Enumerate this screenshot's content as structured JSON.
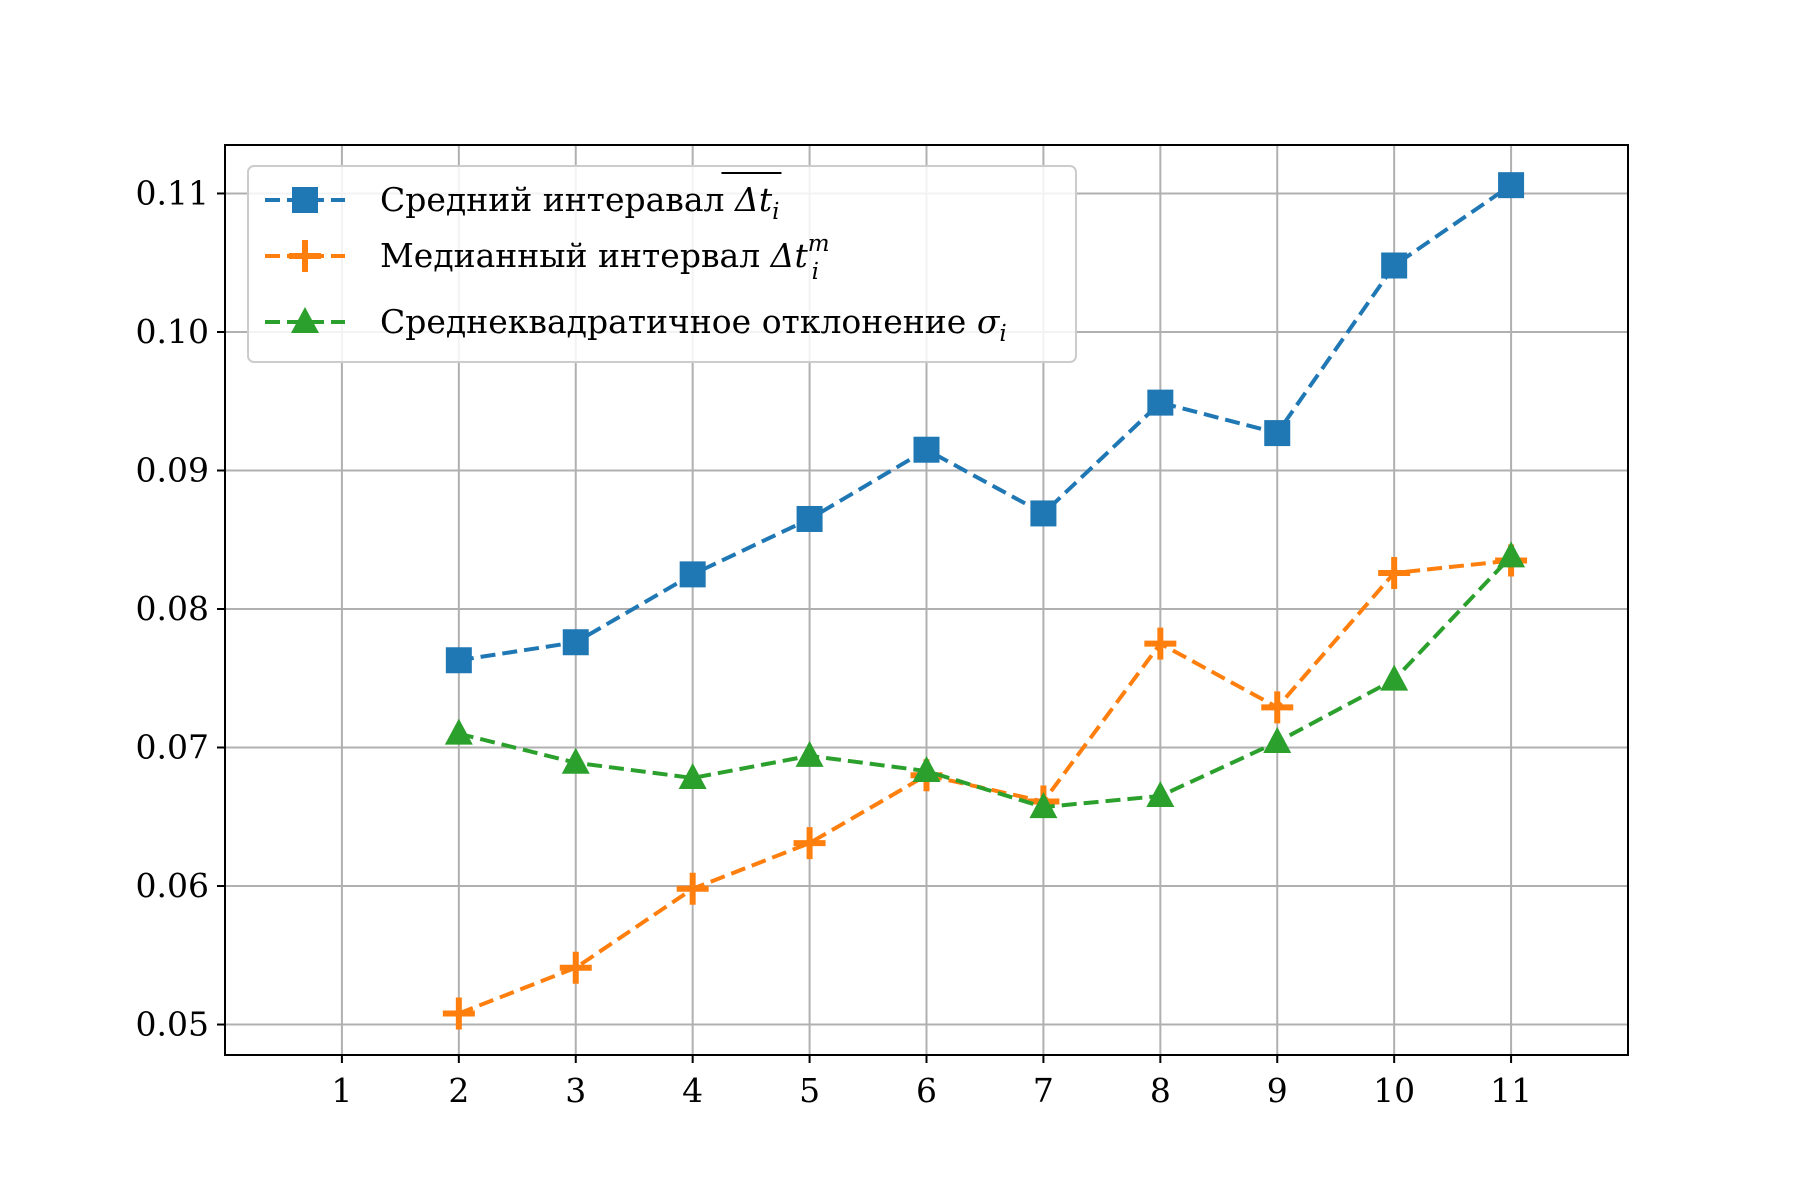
{
  "chart_data": {
    "type": "line",
    "title": "",
    "xlabel": "",
    "ylabel": "",
    "x": [
      1,
      2,
      3,
      4,
      5,
      6,
      7,
      8,
      9,
      10,
      11
    ],
    "x_tick_labels": [
      "1",
      "2",
      "3",
      "4",
      "5",
      "6",
      "7",
      "8",
      "9",
      "10",
      "11"
    ],
    "y_ticks": [
      0.05,
      0.06,
      0.07,
      0.08,
      0.09,
      0.1,
      0.11
    ],
    "y_tick_labels": [
      "0.05",
      "0.06",
      "0.07",
      "0.08",
      "0.09",
      "0.10",
      "0.11"
    ],
    "xlim": [
      0,
      12
    ],
    "ylim": [
      0.0478,
      0.1135
    ],
    "grid": true,
    "legend_position": "top-left",
    "series": [
      {
        "name": "Средний интеравал Δt_i (overline)",
        "legend_text": "Средний интеравал ",
        "legend_math": "Δt",
        "legend_sub": "i",
        "color": "#1f77b4",
        "marker": "square",
        "linestyle": "dashed",
        "x": [
          2,
          3,
          4,
          5,
          6,
          7,
          8,
          9,
          10,
          11
        ],
        "values": [
          0.0763,
          0.0776,
          0.0825,
          0.0865,
          0.0915,
          0.0869,
          0.0949,
          0.0927,
          0.1048,
          0.1106
        ]
      },
      {
        "name": "Медианный интервал Δt_i^m",
        "legend_text": "Медианный интервал ",
        "legend_math": "Δt",
        "legend_sub": "i",
        "legend_sup": "m",
        "color": "#ff7f0e",
        "marker": "plus",
        "linestyle": "dashed",
        "x": [
          2,
          3,
          4,
          5,
          6,
          7,
          8,
          9,
          10,
          11
        ],
        "values": [
          0.0508,
          0.0541,
          0.0598,
          0.0631,
          0.068,
          0.0661,
          0.0775,
          0.0729,
          0.0826,
          0.0835
        ]
      },
      {
        "name": "Среднеквадратичное отклонение σ_i",
        "legend_text": "Среднеквадратичное отклонение ",
        "legend_math": "σ",
        "legend_sub": "i",
        "color": "#2ca02c",
        "marker": "triangle",
        "linestyle": "dashed",
        "x": [
          2,
          3,
          4,
          5,
          6,
          7,
          8,
          9,
          10,
          11
        ],
        "values": [
          0.071,
          0.0689,
          0.0678,
          0.0694,
          0.0683,
          0.0657,
          0.0665,
          0.0704,
          0.0749,
          0.0838
        ]
      }
    ]
  }
}
